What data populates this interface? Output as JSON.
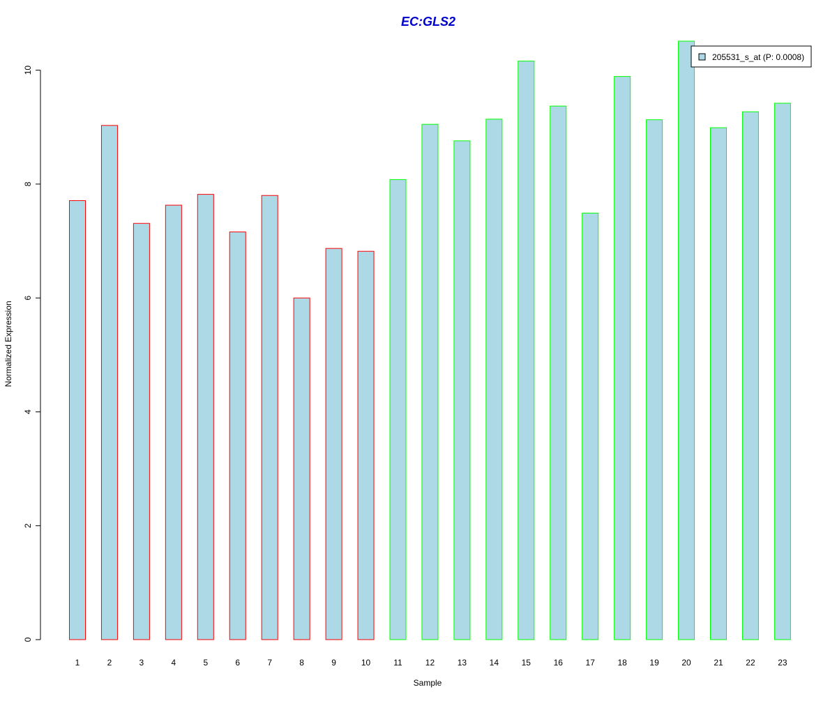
{
  "chart_data": {
    "type": "bar",
    "title": "EC:GLS2",
    "title_color": "#0000CC",
    "xlabel": "Sample",
    "ylabel": "Normalized Expression",
    "categories": [
      "1",
      "2",
      "3",
      "4",
      "5",
      "6",
      "7",
      "8",
      "9",
      "10",
      "11",
      "12",
      "13",
      "14",
      "15",
      "16",
      "17",
      "18",
      "19",
      "20",
      "21",
      "22",
      "23"
    ],
    "series": [
      {
        "name": "205531_s_at (P: 0.0008)",
        "values": [
          7.71,
          9.03,
          7.31,
          7.63,
          7.82,
          7.16,
          7.8,
          6.0,
          6.87,
          6.82,
          8.08,
          9.05,
          8.76,
          9.14,
          10.16,
          9.37,
          7.49,
          9.89,
          9.13,
          10.51,
          8.99,
          9.27,
          9.42
        ],
        "fill_color": "#ADD8E6",
        "border_colors": [
          "#FF0000",
          "#FF0000",
          "#FF0000",
          "#FF0000",
          "#FF0000",
          "#FF0000",
          "#FF0000",
          "#FF0000",
          "#FF0000",
          "#FF0000",
          "#00FF00",
          "#00FF00",
          "#00FF00",
          "#00FF00",
          "#00FF00",
          "#00FF00",
          "#00FF00",
          "#00FF00",
          "#00FF00",
          "#00FF00",
          "#00FF00",
          "#00FF00",
          "#00FF00"
        ]
      }
    ],
    "ylim": [
      0,
      10.51
    ],
    "yticks": [
      0,
      2,
      4,
      6,
      8,
      10
    ],
    "grid": false,
    "legend": {
      "position": "top-right",
      "label": "205531_s_at (P: 0.0008)"
    }
  }
}
